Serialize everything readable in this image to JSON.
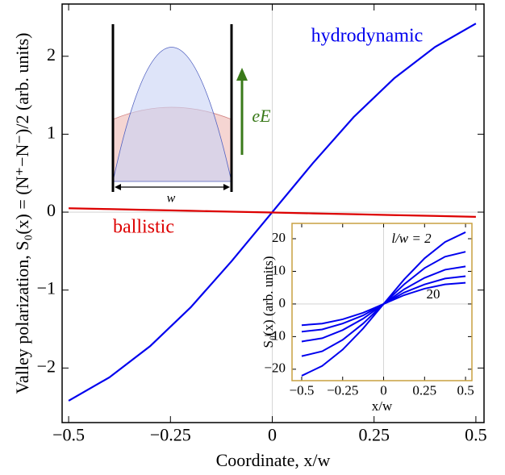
{
  "chart_data": [
    {
      "type": "line",
      "x_label": "Coordinate, x/w",
      "y_label": "Valley polarization, S₀(x) = (N⁺−N⁻)/2 (arb. units)",
      "x": [
        -0.5,
        -0.4,
        -0.3,
        -0.2,
        -0.1,
        0,
        0.1,
        0.2,
        0.3,
        0.4,
        0.5
      ],
      "series": [
        {
          "name": "hydrodynamic",
          "color": "#0000ee",
          "values": [
            -2.42,
            -2.12,
            -1.72,
            -1.22,
            -0.63,
            0,
            0.63,
            1.22,
            1.72,
            2.12,
            2.42
          ]
        },
        {
          "name": "ballistic",
          "color": "#dd0000",
          "values": [
            0.05,
            0.039,
            0.028,
            0.017,
            0.006,
            -0.005,
            -0.016,
            -0.027,
            -0.038,
            -0.049,
            -0.06
          ]
        }
      ],
      "xlim": [
        -0.516,
        0.52
      ],
      "ylim": [
        -2.7,
        2.67
      ],
      "xticks": [
        {
          "value": -0.5,
          "label": "−0.5"
        },
        {
          "value": -0.25,
          "label": "−0.25"
        },
        0,
        0.25,
        0.5
      ],
      "yticks": [
        {
          "value": -2,
          "label": "−2"
        },
        {
          "value": -1,
          "label": "−1"
        },
        0,
        1,
        2
      ],
      "zero_lines": true,
      "schematic_labels": [
        "w",
        "eE"
      ]
    },
    {
      "type": "line",
      "x_label": "x/w",
      "y_label": "S₀(x) (arb. units)",
      "x": [
        -0.5,
        -0.375,
        -0.25,
        -0.125,
        0,
        0.125,
        0.25,
        0.375,
        0.5
      ],
      "series": [
        {
          "color": "#0000ee",
          "values": [
            -22,
            -19,
            -14,
            -7.5,
            0,
            7.5,
            14,
            19,
            22
          ]
        },
        {
          "color": "#0000ee",
          "values": [
            -16,
            -14.5,
            -11,
            -6,
            0,
            6,
            11,
            14.5,
            16
          ]
        },
        {
          "color": "#0000ee",
          "values": [
            -11.5,
            -10.5,
            -8,
            -4.5,
            0,
            4.5,
            8,
            10.5,
            11.5
          ]
        },
        {
          "color": "#0000ee",
          "values": [
            -8.5,
            -7.8,
            -6,
            -3.5,
            0,
            3.5,
            6,
            7.8,
            8.5
          ]
        },
        {
          "color": "#0000ee",
          "values": [
            -6.5,
            -6,
            -4.7,
            -2.7,
            0,
            2.7,
            4.7,
            6,
            6.5
          ]
        }
      ],
      "xlim": [
        -0.559,
        0.539
      ],
      "ylim": [
        -23.5,
        24.7
      ],
      "xticks": [
        {
          "value": -0.5,
          "label": "−0.5"
        },
        {
          "value": -0.25,
          "label": "−0.25"
        },
        0,
        0.25,
        0.5
      ],
      "yticks": [
        {
          "value": -20,
          "label": "−20"
        },
        {
          "value": -10,
          "label": "−10"
        },
        0,
        10,
        20
      ],
      "zero_lines": true,
      "annotations": [
        "l/w = 2",
        "20"
      ]
    }
  ]
}
